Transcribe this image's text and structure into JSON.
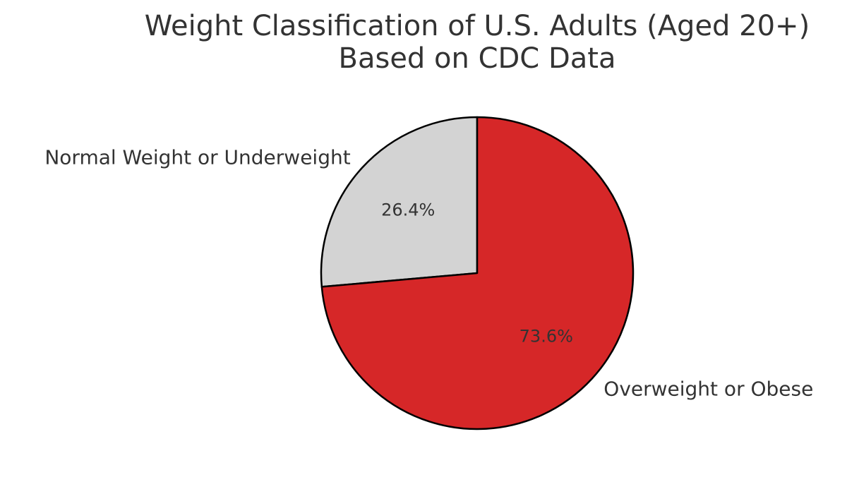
{
  "chart_data": {
    "type": "pie",
    "title_lines": [
      "Weight Classification of U.S. Adults (Aged 20+)",
      "Based on CDC Data"
    ],
    "start_angle_deg": 90,
    "direction": "counterclockwise",
    "slices": [
      {
        "label": "Normal Weight or Underweight",
        "value": 26.4,
        "pct_label": "26.4%",
        "color": "#d3d3d3"
      },
      {
        "label": "Overweight or Obese",
        "value": 73.6,
        "pct_label": "73.6%",
        "color": "#d62728"
      }
    ],
    "edge_color": "#000000",
    "text_color": "#333333"
  }
}
